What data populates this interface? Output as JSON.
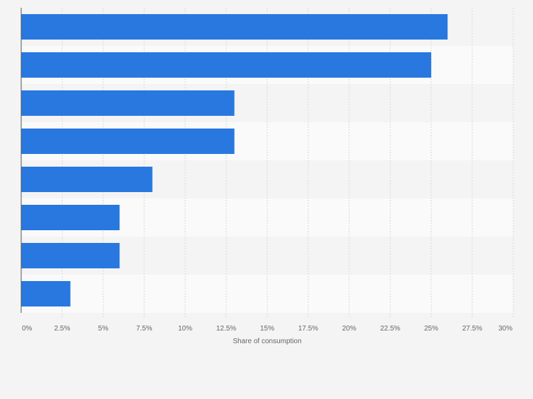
{
  "chart_data": {
    "type": "bar",
    "orientation": "horizontal",
    "categories": [
      "",
      "",
      "",
      "",
      "",
      "",
      "",
      ""
    ],
    "values": [
      26,
      25,
      13,
      13,
      8,
      6,
      6,
      3
    ],
    "value_unit": "%",
    "title": "",
    "xlabel": "Share of consumption",
    "ylabel": "",
    "xlim": [
      0,
      30
    ],
    "x_ticks": [
      0,
      2.5,
      5,
      7.5,
      10,
      12.5,
      15,
      17.5,
      20,
      22.5,
      25,
      27.5,
      30
    ],
    "x_tick_labels": [
      "0%",
      "2.5%",
      "5%",
      "7.5%",
      "10%",
      "12.5%",
      "15%",
      "17.5%",
      "20%",
      "22.5%",
      "25%",
      "27.5%",
      "30%"
    ],
    "grid": true,
    "legend": "none",
    "colors": {
      "bar": "#2878e0",
      "band_light": "#fafafa",
      "band_dark": "#f4f4f4",
      "grid": "#d7d7d7",
      "axis": "#555555",
      "tick_text": "#666666"
    }
  }
}
